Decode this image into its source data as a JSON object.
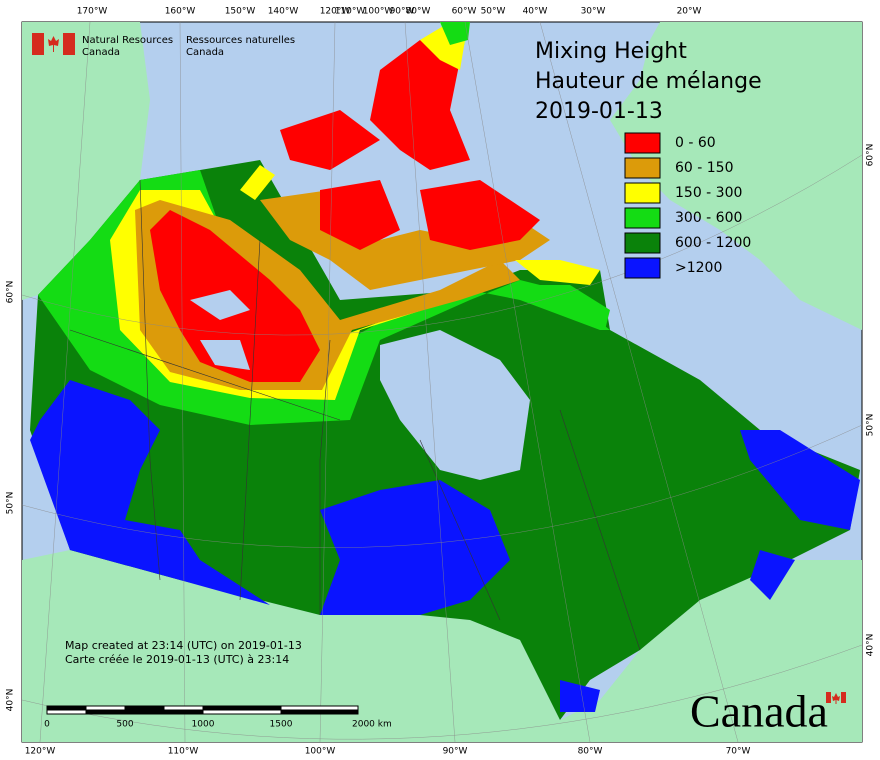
{
  "logo": {
    "english": [
      "Natural Resources",
      "Canada"
    ],
    "french": [
      "Ressources naturelles",
      "Canada"
    ]
  },
  "title": [
    "Mixing Height",
    "Hauteur de mélange",
    "2019-01-13"
  ],
  "legend": [
    {
      "label": "0 - 60",
      "color": "#ff0000"
    },
    {
      "label": "60 - 150",
      "color": "#dc9b0a"
    },
    {
      "label": "150 - 300",
      "color": "#ffff00"
    },
    {
      "label": "300 - 600",
      "color": "#14dc14"
    },
    {
      "label": "600 - 1200",
      "color": "#0a820a"
    },
    {
      "label": ">1200",
      "color": "#0a14ff"
    }
  ],
  "graticule": {
    "top": [
      "170°W",
      "160°W",
      "150°W",
      "140°W",
      "120°W",
      "110°W",
      "100°W",
      "90°W",
      "80°W",
      "60°W",
      "50°W",
      "40°W",
      "30°W",
      "20°W"
    ],
    "bottom": [
      "120°W",
      "110°W",
      "100°W",
      "90°W",
      "80°W",
      "70°W"
    ],
    "left": [
      "60°N",
      "50°N",
      "40°N"
    ],
    "right": [
      "60°N",
      "50°N",
      "40°N"
    ]
  },
  "footer": [
    "Map created at 23:14 (UTC) on 2019-01-13",
    "Carte créée le 2019-01-13 (UTC) à 23:14"
  ],
  "scale_bar": [
    "0",
    "500",
    "1000",
    "1500",
    "2000  km"
  ],
  "wordmark": "Canada"
}
